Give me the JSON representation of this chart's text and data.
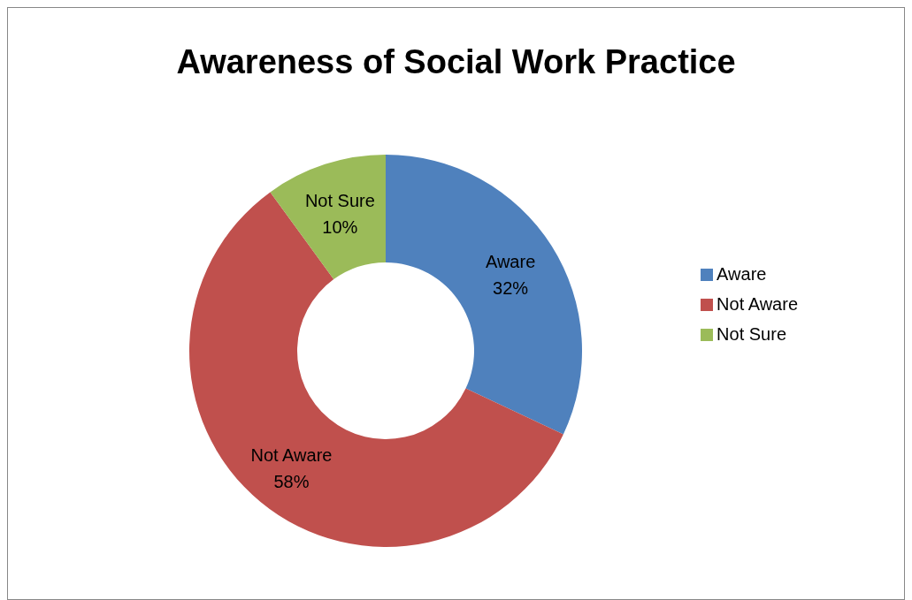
{
  "chart_data": {
    "type": "donut",
    "title": "Awareness of Social Work Practice",
    "categories": [
      "Aware",
      "Not Aware",
      "Not Sure"
    ],
    "values": [
      32,
      58,
      10
    ],
    "colors": [
      "#4f81bd",
      "#c0504d",
      "#9bbb59"
    ],
    "value_labels": [
      "32%",
      "58%",
      "10%"
    ],
    "legend": "right"
  }
}
